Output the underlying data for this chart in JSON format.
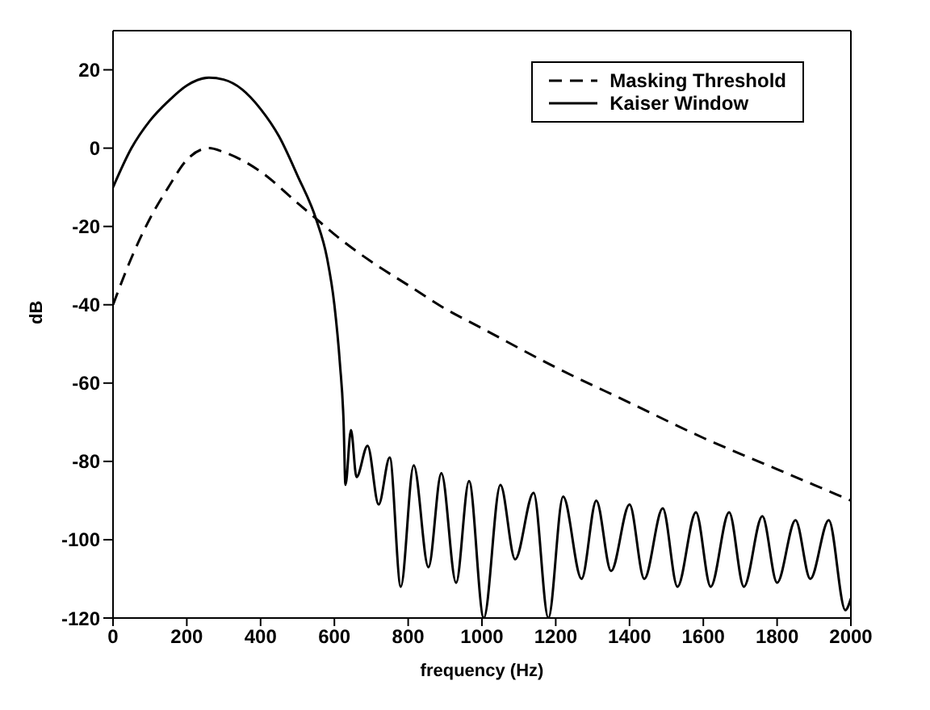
{
  "chart_data": {
    "type": "line",
    "xlabel": "frequency (Hz)",
    "ylabel": "dB",
    "xlim": [
      0,
      2000
    ],
    "ylim": [
      -120,
      30
    ],
    "xticks": [
      0,
      200,
      400,
      600,
      800,
      1000,
      1200,
      1400,
      1600,
      1800,
      2000
    ],
    "yticks": [
      -120,
      -100,
      -80,
      -60,
      -40,
      -20,
      0,
      20
    ],
    "legend": "top right",
    "marker": "none",
    "series": [
      {
        "name": "Masking Threshold",
        "color": "#000000",
        "line_style": "dashed",
        "x": [
          0,
          50,
          100,
          150,
          200,
          260,
          300,
          400,
          500,
          550,
          600,
          700,
          800,
          900,
          1000,
          1200,
          1400,
          1600,
          1800,
          2000
        ],
        "values": [
          -40,
          -28,
          -18,
          -10,
          -3,
          0,
          -1,
          -6,
          -14,
          -18,
          -22,
          -29,
          -35,
          -41,
          -46,
          -56,
          -65,
          -74,
          -82,
          -90
        ]
      },
      {
        "name": "Kaiser Window",
        "color": "#000000",
        "line_style": "solid",
        "x": [
          0,
          50,
          100,
          150,
          200,
          260,
          300,
          350,
          400,
          450,
          500,
          550,
          580,
          600,
          615,
          625,
          630,
          645,
          660,
          690,
          720,
          750,
          780,
          815,
          855,
          890,
          930,
          965,
          1005,
          1050,
          1090,
          1140,
          1180,
          1220,
          1270,
          1310,
          1350,
          1400,
          1440,
          1490,
          1530,
          1580,
          1620,
          1670,
          1710,
          1760,
          1800,
          1850,
          1890,
          1940,
          1985,
          2000
        ],
        "values": [
          -10,
          0,
          7,
          12,
          16,
          18,
          17.5,
          15,
          10,
          3,
          -7,
          -18,
          -28,
          -40,
          -55,
          -70,
          -86,
          -72,
          -84,
          -76,
          -91,
          -79,
          -112,
          -81,
          -107,
          -83,
          -111,
          -85,
          -120,
          -86,
          -105,
          -88,
          -120,
          -89,
          -110,
          -90,
          -108,
          -91,
          -110,
          -92,
          -112,
          -93,
          -112,
          -93,
          -112,
          -94,
          -111,
          -95,
          -110,
          -95,
          -118,
          -115
        ]
      }
    ]
  }
}
